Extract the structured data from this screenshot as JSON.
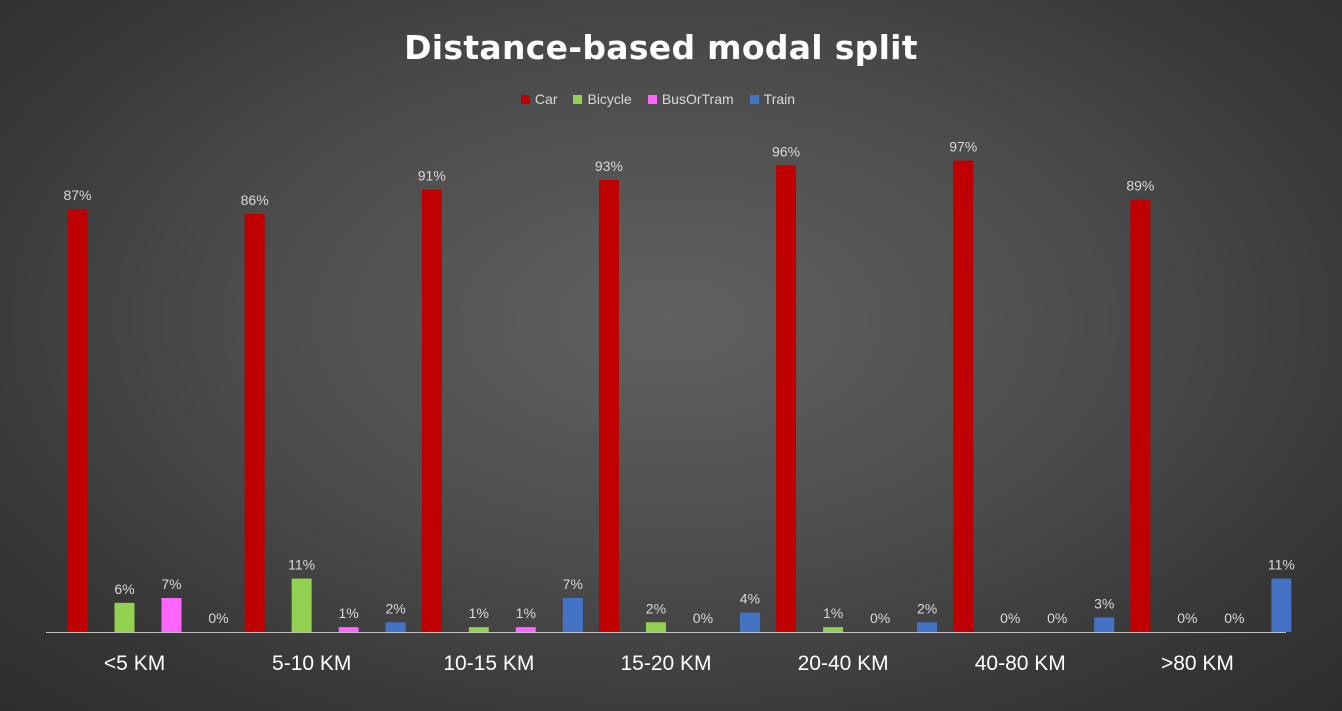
{
  "chart_data": {
    "type": "bar",
    "title": "Distance-based modal split",
    "categories": [
      "<5 KM",
      "5-10 KM",
      "10-15 KM",
      "15-20 KM",
      "20-40 KM",
      "40-80 KM",
      ">80 KM"
    ],
    "series": [
      {
        "name": "Car",
        "color": "#c00000",
        "values": [
          87,
          86,
          91,
          93,
          96,
          97,
          89
        ]
      },
      {
        "name": "Bicycle",
        "color": "#92d050",
        "values": [
          6,
          11,
          1,
          2,
          1,
          0,
          0
        ]
      },
      {
        "name": "BusOrTram",
        "color": "#ff66ff",
        "values": [
          7,
          1,
          1,
          0,
          0,
          0,
          0
        ]
      },
      {
        "name": "Train",
        "color": "#4472c4",
        "values": [
          0,
          2,
          7,
          4,
          2,
          3,
          11
        ]
      }
    ],
    "data_label_suffix": "%",
    "ylim": [
      0,
      100
    ],
    "legend": "top",
    "grid": false,
    "xlabel": "",
    "ylabel": ""
  }
}
